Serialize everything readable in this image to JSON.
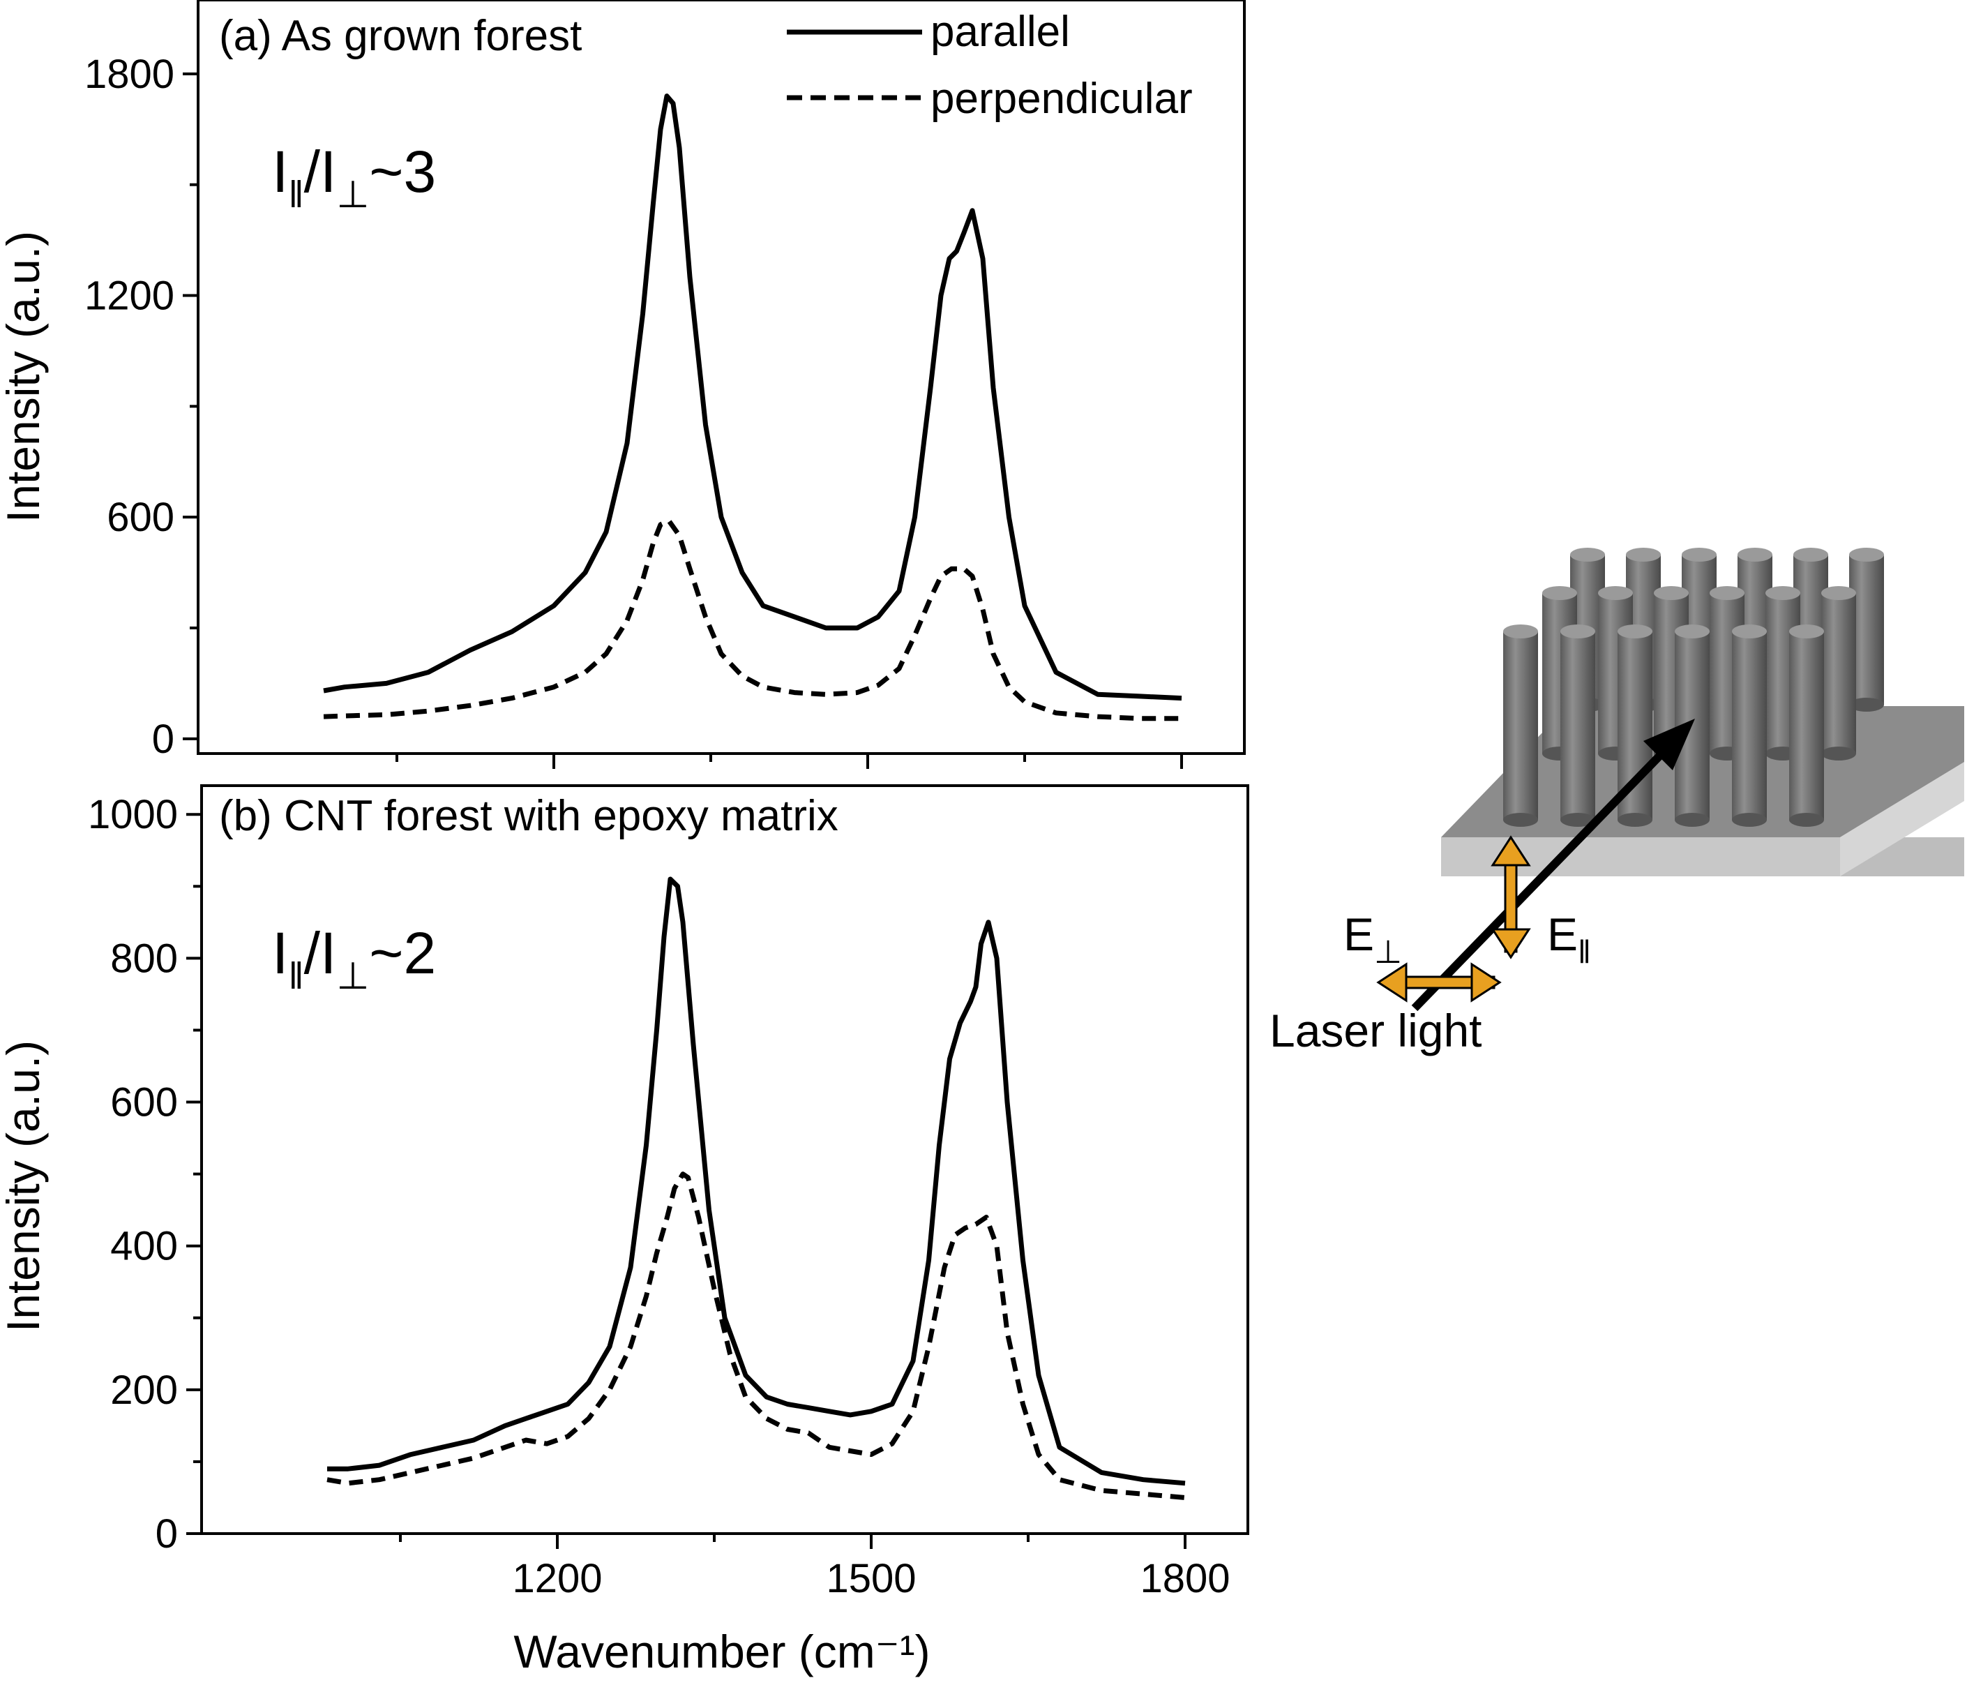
{
  "chart_data": [
    {
      "id": "a",
      "type": "line",
      "panel_label": "(a) As grown forest",
      "ratio": {
        "main": "I",
        "sub1": "‖",
        "slash": "/I",
        "sub2": "⊥",
        "tail": "~3"
      },
      "ylabel": "Intensity (a.u.)",
      "xlabel": "",
      "xlim": [
        860,
        1860
      ],
      "ylim": [
        -40,
        2000
      ],
      "xticks": [
        1200,
        1500,
        1800
      ],
      "xtick_labels": [
        "",
        "",
        ""
      ],
      "yticks": [
        0,
        600,
        1200,
        1800
      ],
      "ytick_labels": [
        "0",
        "600",
        "1200",
        "1800"
      ],
      "series": [
        {
          "name": "parallel",
          "style": "solid",
          "x": [
            980,
            1000,
            1040,
            1080,
            1120,
            1160,
            1200,
            1230,
            1250,
            1270,
            1285,
            1295,
            1302,
            1308,
            1314,
            1320,
            1330,
            1345,
            1360,
            1380,
            1400,
            1430,
            1460,
            1490,
            1510,
            1530,
            1545,
            1560,
            1570,
            1578,
            1585,
            1592,
            1600,
            1610,
            1620,
            1635,
            1650,
            1680,
            1720,
            1760,
            1800
          ],
          "values": [
            130,
            140,
            150,
            180,
            240,
            290,
            360,
            450,
            560,
            800,
            1150,
            1450,
            1650,
            1740,
            1720,
            1600,
            1250,
            850,
            600,
            450,
            360,
            330,
            300,
            300,
            330,
            400,
            600,
            950,
            1200,
            1300,
            1320,
            1370,
            1430,
            1300,
            950,
            600,
            360,
            180,
            120,
            115,
            110
          ]
        },
        {
          "name": "perpendicular",
          "style": "dashed",
          "x": [
            980,
            1000,
            1040,
            1080,
            1120,
            1160,
            1200,
            1230,
            1250,
            1270,
            1285,
            1295,
            1302,
            1310,
            1320,
            1330,
            1345,
            1360,
            1380,
            1400,
            1430,
            1460,
            1490,
            1510,
            1530,
            1545,
            1560,
            1570,
            1580,
            1592,
            1600,
            1610,
            1620,
            1635,
            1650,
            1680,
            1720,
            1760,
            1800
          ],
          "values": [
            60,
            62,
            65,
            75,
            90,
            110,
            140,
            180,
            230,
            320,
            430,
            530,
            580,
            590,
            550,
            460,
            330,
            230,
            170,
            140,
            125,
            120,
            125,
            145,
            190,
            280,
            380,
            440,
            460,
            460,
            440,
            350,
            230,
            140,
            100,
            70,
            60,
            55,
            55
          ]
        }
      ]
    },
    {
      "id": "b",
      "type": "line",
      "panel_label": "(b) CNT forest with epoxy matrix",
      "ratio": {
        "main": "I",
        "sub1": "‖",
        "slash": "/I",
        "sub2": "⊥",
        "tail": "~2"
      },
      "ylabel": "Intensity (a.u.)",
      "xlabel": "Wavenumber (cm⁻¹)",
      "xlim": [
        860,
        1860
      ],
      "ylim": [
        0,
        1040
      ],
      "xticks": [
        1200,
        1500,
        1800
      ],
      "xtick_labels": [
        "1200",
        "1500",
        "1800"
      ],
      "yticks": [
        0,
        200,
        400,
        600,
        800,
        1000
      ],
      "ytick_labels": [
        "0",
        "200",
        "400",
        "600",
        "800",
        "1000"
      ],
      "series": [
        {
          "name": "parallel",
          "style": "solid",
          "x": [
            980,
            1000,
            1030,
            1060,
            1090,
            1120,
            1150,
            1170,
            1190,
            1210,
            1230,
            1250,
            1270,
            1285,
            1295,
            1302,
            1308,
            1315,
            1320,
            1330,
            1345,
            1360,
            1380,
            1400,
            1420,
            1440,
            1460,
            1480,
            1500,
            1520,
            1540,
            1555,
            1565,
            1575,
            1585,
            1595,
            1600,
            1605,
            1612,
            1620,
            1630,
            1645,
            1660,
            1680,
            1720,
            1760,
            1800
          ],
          "values": [
            90,
            90,
            95,
            110,
            120,
            130,
            150,
            160,
            170,
            180,
            210,
            260,
            370,
            540,
            700,
            830,
            910,
            900,
            850,
            680,
            450,
            300,
            220,
            190,
            180,
            175,
            170,
            165,
            170,
            180,
            240,
            380,
            540,
            660,
            710,
            740,
            760,
            820,
            850,
            800,
            600,
            380,
            220,
            120,
            85,
            75,
            70
          ]
        },
        {
          "name": "perpendicular",
          "style": "dashed",
          "x": [
            980,
            1000,
            1030,
            1060,
            1090,
            1120,
            1150,
            1170,
            1190,
            1210,
            1230,
            1250,
            1270,
            1285,
            1295,
            1305,
            1312,
            1320,
            1325,
            1335,
            1350,
            1365,
            1380,
            1400,
            1420,
            1440,
            1460,
            1480,
            1500,
            1520,
            1540,
            1555,
            1570,
            1580,
            1590,
            1600,
            1610,
            1620,
            1630,
            1645,
            1660,
            1680,
            1720,
            1760,
            1800
          ],
          "values": [
            75,
            70,
            75,
            85,
            95,
            105,
            120,
            130,
            125,
            135,
            160,
            200,
            260,
            330,
            390,
            440,
            480,
            500,
            495,
            440,
            340,
            250,
            190,
            160,
            145,
            140,
            120,
            115,
            110,
            125,
            170,
            260,
            370,
            415,
            425,
            430,
            440,
            400,
            280,
            180,
            110,
            75,
            60,
            55,
            50
          ]
        }
      ]
    }
  ],
  "legend": {
    "items": [
      {
        "label": "parallel",
        "style": "solid"
      },
      {
        "label": "perpendicular",
        "style": "dashed"
      }
    ]
  },
  "schematic": {
    "e_perp": {
      "main": "E",
      "sub": "⊥"
    },
    "e_par": {
      "main": "E",
      "sub": "‖"
    },
    "laser_label": "Laser light",
    "arrow_color": "#e8a020"
  }
}
